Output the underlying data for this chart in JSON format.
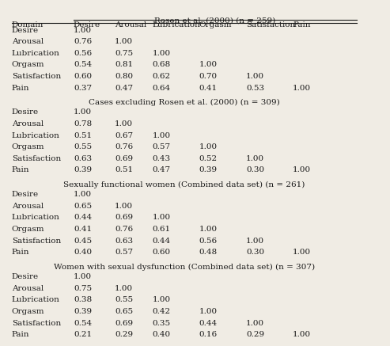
{
  "title_main": "Rosen et al. (2000) (n = 259)",
  "col_header": [
    "Domain",
    "Desire",
    "Arousal",
    "Lubrication",
    "Orgasm",
    "Satisfaction",
    "Pain"
  ],
  "sections": [
    {
      "title": "Rosen et al. (2000) (n = 259)",
      "rows": [
        [
          "Desire",
          "1.00",
          "",
          "",
          "",
          "",
          ""
        ],
        [
          "Arousal",
          "0.76",
          "1.00",
          "",
          "",
          "",
          ""
        ],
        [
          "Lubrication",
          "0.56",
          "0.75",
          "1.00",
          "",
          "",
          ""
        ],
        [
          "Orgasm",
          "0.54",
          "0.81",
          "0.68",
          "1.00",
          "",
          ""
        ],
        [
          "Satisfaction",
          "0.60",
          "0.80",
          "0.62",
          "0.70",
          "1.00",
          ""
        ],
        [
          "Pain",
          "0.37",
          "0.47",
          "0.64",
          "0.41",
          "0.53",
          "1.00"
        ]
      ]
    },
    {
      "title": "Cases excluding Rosen et al. (2000) (n = 309)",
      "rows": [
        [
          "Desire",
          "1.00",
          "",
          "",
          "",
          "",
          ""
        ],
        [
          "Arousal",
          "0.78",
          "1.00",
          "",
          "",
          "",
          ""
        ],
        [
          "Lubrication",
          "0.51",
          "0.67",
          "1.00",
          "",
          "",
          ""
        ],
        [
          "Orgasm",
          "0.55",
          "0.76",
          "0.57",
          "1.00",
          "",
          ""
        ],
        [
          "Satisfaction",
          "0.63",
          "0.69",
          "0.43",
          "0.52",
          "1.00",
          ""
        ],
        [
          "Pain",
          "0.39",
          "0.51",
          "0.47",
          "0.39",
          "0.30",
          "1.00"
        ]
      ]
    },
    {
      "title": "Sexually functional women (Combined data set) (n = 261)",
      "rows": [
        [
          "Desire",
          "1.00",
          "",
          "",
          "",
          "",
          ""
        ],
        [
          "Arousal",
          "0.65",
          "1.00",
          "",
          "",
          "",
          ""
        ],
        [
          "Lubrication",
          "0.44",
          "0.69",
          "1.00",
          "",
          "",
          ""
        ],
        [
          "Orgasm",
          "0.41",
          "0.76",
          "0.61",
          "1.00",
          "",
          ""
        ],
        [
          "Satisfaction",
          "0.45",
          "0.63",
          "0.44",
          "0.56",
          "1.00",
          ""
        ],
        [
          "Pain",
          "0.40",
          "0.57",
          "0.60",
          "0.48",
          "0.30",
          "1.00"
        ]
      ]
    },
    {
      "title": "Women with sexual dysfunction (Combined data set) (n = 307)",
      "rows": [
        [
          "Desire",
          "1.00",
          "",
          "",
          "",
          "",
          ""
        ],
        [
          "Arousal",
          "0.75",
          "1.00",
          "",
          "",
          "",
          ""
        ],
        [
          "Lubrication",
          "0.38",
          "0.55",
          "1.00",
          "",
          "",
          ""
        ],
        [
          "Orgasm",
          "0.39",
          "0.65",
          "0.42",
          "1.00",
          "",
          ""
        ],
        [
          "Satisfaction",
          "0.54",
          "0.69",
          "0.35",
          "0.44",
          "1.00",
          ""
        ],
        [
          "Pain",
          "0.21",
          "0.29",
          "0.40",
          "0.16",
          "0.29",
          "1.00"
        ]
      ]
    }
  ],
  "bg_color": "#f0ece4",
  "text_color": "#1a1a1a",
  "font_size": 7.5,
  "header_font_size": 7.5,
  "section_title_font_size": 7.5
}
